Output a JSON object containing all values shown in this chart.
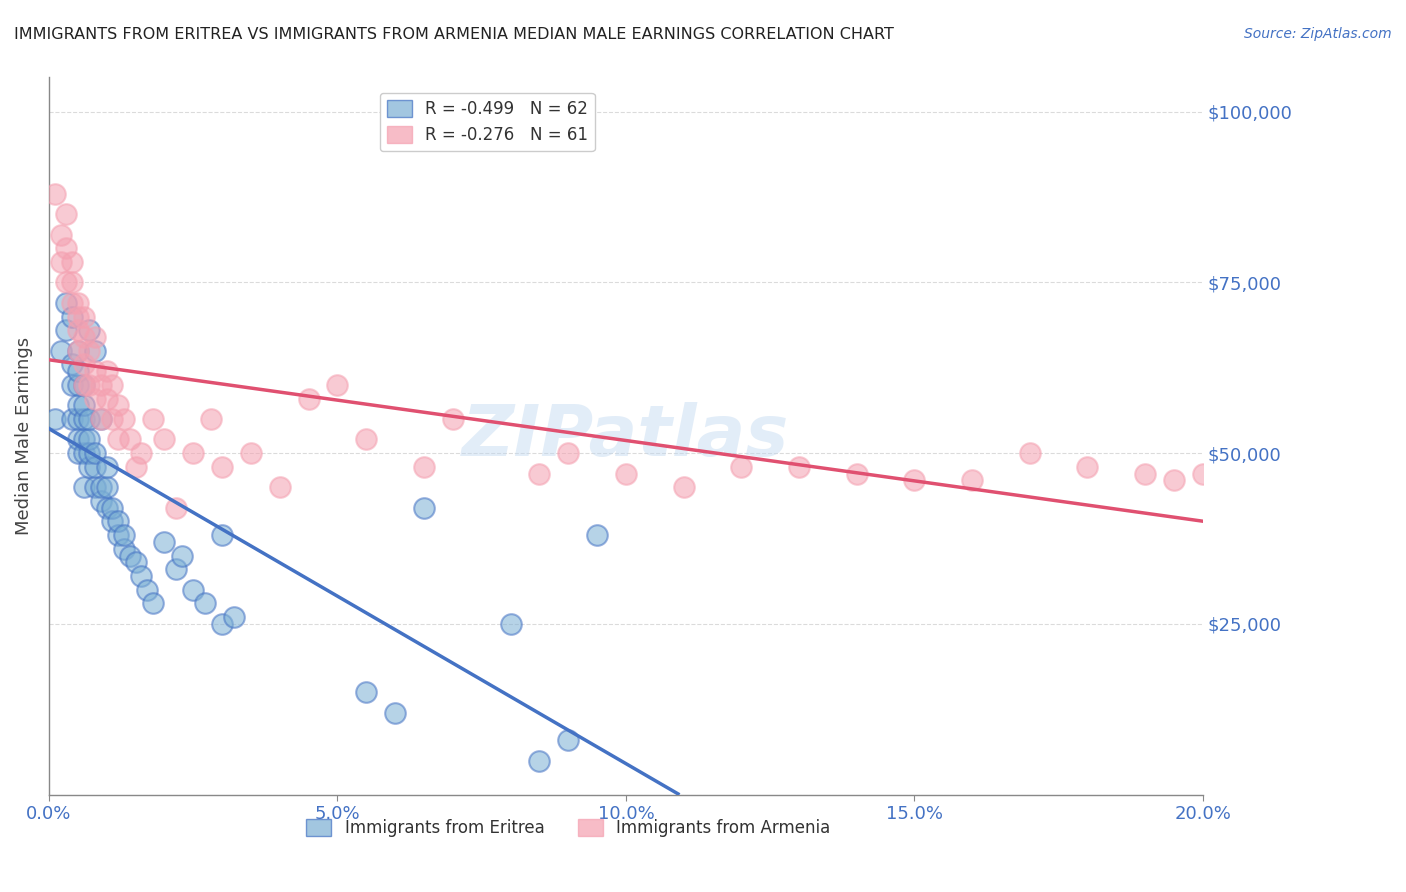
{
  "title": "IMMIGRANTS FROM ERITREA VS IMMIGRANTS FROM ARMENIA MEDIAN MALE EARNINGS CORRELATION CHART",
  "source": "Source: ZipAtlas.com",
  "ylabel": "Median Male Earnings",
  "xlabel_ticks": [
    "0.0%",
    "5.0%",
    "10.0%",
    "15.0%",
    "20.0%"
  ],
  "xlabel_vals": [
    0.0,
    0.05,
    0.1,
    0.15,
    0.2
  ],
  "ytick_vals": [
    0,
    25000,
    50000,
    75000,
    100000
  ],
  "ytick_labels": [
    "",
    "$25,000",
    "$50,000",
    "$75,000",
    "$100,000"
  ],
  "ymin": 0,
  "ymax": 105000,
  "xmin": 0.0,
  "xmax": 0.2,
  "legend_eritrea": "R = -0.499   N = 62",
  "legend_armenia": "R = -0.276   N = 61",
  "legend_eritrea_r": -0.499,
  "legend_eritrea_n": 62,
  "legend_armenia_r": -0.276,
  "legend_armenia_n": 61,
  "color_eritrea": "#7bafd4",
  "color_armenia": "#f4a0b0",
  "color_eritrea_line": "#4472c4",
  "color_armenia_line": "#e05070",
  "color_axis_labels": "#4472c4",
  "background_color": "#ffffff",
  "watermark": "ZIPatlas",
  "scatter_eritrea_x": [
    0.001,
    0.002,
    0.003,
    0.003,
    0.004,
    0.004,
    0.004,
    0.004,
    0.005,
    0.005,
    0.005,
    0.005,
    0.005,
    0.005,
    0.005,
    0.006,
    0.006,
    0.006,
    0.006,
    0.006,
    0.006,
    0.007,
    0.007,
    0.007,
    0.007,
    0.007,
    0.008,
    0.008,
    0.008,
    0.008,
    0.009,
    0.009,
    0.009,
    0.01,
    0.01,
    0.01,
    0.011,
    0.011,
    0.012,
    0.012,
    0.013,
    0.013,
    0.014,
    0.015,
    0.016,
    0.017,
    0.018,
    0.02,
    0.022,
    0.023,
    0.025,
    0.027,
    0.03,
    0.03,
    0.032,
    0.055,
    0.06,
    0.065,
    0.08,
    0.085,
    0.09,
    0.095
  ],
  "scatter_eritrea_y": [
    55000,
    65000,
    68000,
    72000,
    55000,
    60000,
    63000,
    70000,
    50000,
    52000,
    55000,
    57000,
    60000,
    62000,
    65000,
    45000,
    50000,
    52000,
    55000,
    57000,
    60000,
    48000,
    50000,
    52000,
    55000,
    68000,
    45000,
    48000,
    50000,
    65000,
    43000,
    45000,
    55000,
    42000,
    45000,
    48000,
    40000,
    42000,
    38000,
    40000,
    36000,
    38000,
    35000,
    34000,
    32000,
    30000,
    28000,
    37000,
    33000,
    35000,
    30000,
    28000,
    25000,
    38000,
    26000,
    15000,
    12000,
    42000,
    25000,
    5000,
    8000,
    38000
  ],
  "scatter_armenia_x": [
    0.001,
    0.002,
    0.002,
    0.003,
    0.003,
    0.003,
    0.004,
    0.004,
    0.004,
    0.005,
    0.005,
    0.005,
    0.005,
    0.006,
    0.006,
    0.006,
    0.006,
    0.007,
    0.007,
    0.008,
    0.008,
    0.008,
    0.009,
    0.009,
    0.01,
    0.01,
    0.011,
    0.011,
    0.012,
    0.012,
    0.013,
    0.014,
    0.015,
    0.016,
    0.018,
    0.02,
    0.022,
    0.025,
    0.028,
    0.03,
    0.035,
    0.04,
    0.045,
    0.05,
    0.055,
    0.065,
    0.07,
    0.085,
    0.09,
    0.1,
    0.11,
    0.12,
    0.13,
    0.14,
    0.15,
    0.16,
    0.17,
    0.18,
    0.19,
    0.195,
    0.2
  ],
  "scatter_armenia_y": [
    88000,
    82000,
    78000,
    75000,
    80000,
    85000,
    72000,
    75000,
    78000,
    70000,
    65000,
    68000,
    72000,
    60000,
    63000,
    67000,
    70000,
    60000,
    65000,
    58000,
    62000,
    67000,
    55000,
    60000,
    58000,
    62000,
    55000,
    60000,
    52000,
    57000,
    55000,
    52000,
    48000,
    50000,
    55000,
    52000,
    42000,
    50000,
    55000,
    48000,
    50000,
    45000,
    58000,
    60000,
    52000,
    48000,
    55000,
    47000,
    50000,
    47000,
    45000,
    48000,
    48000,
    47000,
    46000,
    46000,
    50000,
    48000,
    47000,
    46000,
    47000
  ]
}
